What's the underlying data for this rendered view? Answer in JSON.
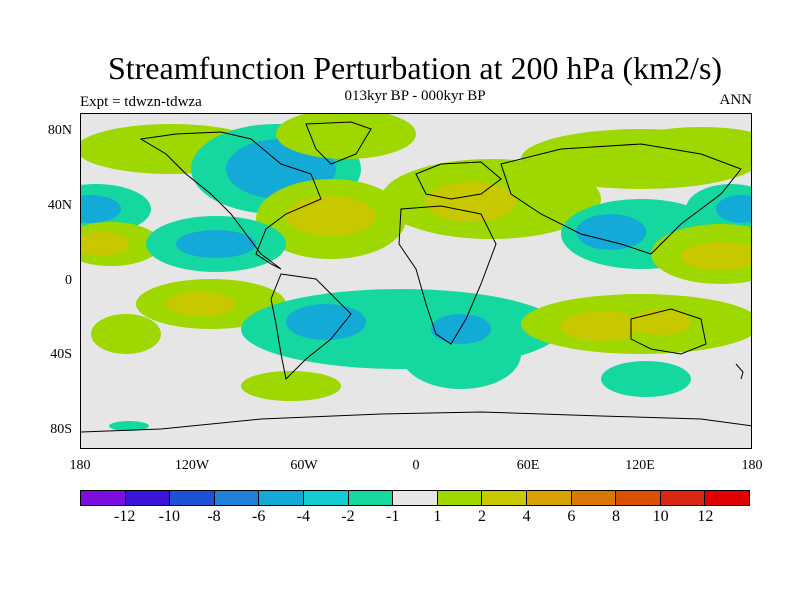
{
  "title": "Streamfunction Perturbation at 200 hPa (km2/s)",
  "subtitle": "013kyr BP - 000kyr BP",
  "left_label": "Expt = tdwzn-tdwza",
  "right_label": "ANN",
  "lat_ticks": [
    "80N",
    "40N",
    "0",
    "40S",
    "80S"
  ],
  "lon_ticks": [
    "180",
    "120W",
    "60W",
    "0",
    "60E",
    "120E",
    "180"
  ],
  "colorbar": {
    "labels": [
      "-12",
      "-10",
      "-8",
      "-6",
      "-4",
      "-2",
      "-1",
      "1",
      "2",
      "4",
      "6",
      "8",
      "10",
      "12"
    ],
    "colors": [
      "#7a0fe0",
      "#3a14d8",
      "#1f50d8",
      "#1f82d8",
      "#14aad8",
      "#14cdd2",
      "#14d8a0",
      "#e6e6e6",
      "#9ed800",
      "#c8c800",
      "#d8a000",
      "#d87800",
      "#d85000",
      "#d82814",
      "#e00000"
    ]
  },
  "map": {
    "background": "#e6e6e6",
    "contours": [
      {
        "id": "north-america-low",
        "color": "#14d8a0"
      },
      {
        "id": "north-america-low-core",
        "color": "#14aad8"
      },
      {
        "id": "arctic-high",
        "color": "#9ed800"
      },
      {
        "id": "atlantic-high",
        "color": "#9ed800"
      },
      {
        "id": "atlantic-high-core",
        "color": "#c8c800"
      },
      {
        "id": "europe-high",
        "color": "#9ed800"
      },
      {
        "id": "europe-high-core",
        "color": "#c8c800"
      },
      {
        "id": "asia-low",
        "color": "#14d8a0"
      },
      {
        "id": "asia-low-core",
        "color": "#14aad8"
      },
      {
        "id": "pacific-west-low",
        "color": "#14d8a0"
      },
      {
        "id": "pacific-west-low-core",
        "color": "#14aad8"
      },
      {
        "id": "pacific-east-low",
        "color": "#14d8a0"
      },
      {
        "id": "pacific-east-low-core",
        "color": "#14aad8"
      },
      {
        "id": "pacific-high",
        "color": "#9ed800"
      },
      {
        "id": "pacific-high-core",
        "color": "#c8c800"
      },
      {
        "id": "southern-low",
        "color": "#14d8a0"
      },
      {
        "id": "southern-low-core",
        "color": "#14aad8"
      },
      {
        "id": "australia-high",
        "color": "#9ed800"
      },
      {
        "id": "australia-high-core",
        "color": "#c8c800"
      },
      {
        "id": "south-pacific-high",
        "color": "#9ed800"
      },
      {
        "id": "south-pacific-high-core",
        "color": "#c8c800"
      },
      {
        "id": "southern-ocean-high",
        "color": "#9ed800"
      }
    ]
  }
}
